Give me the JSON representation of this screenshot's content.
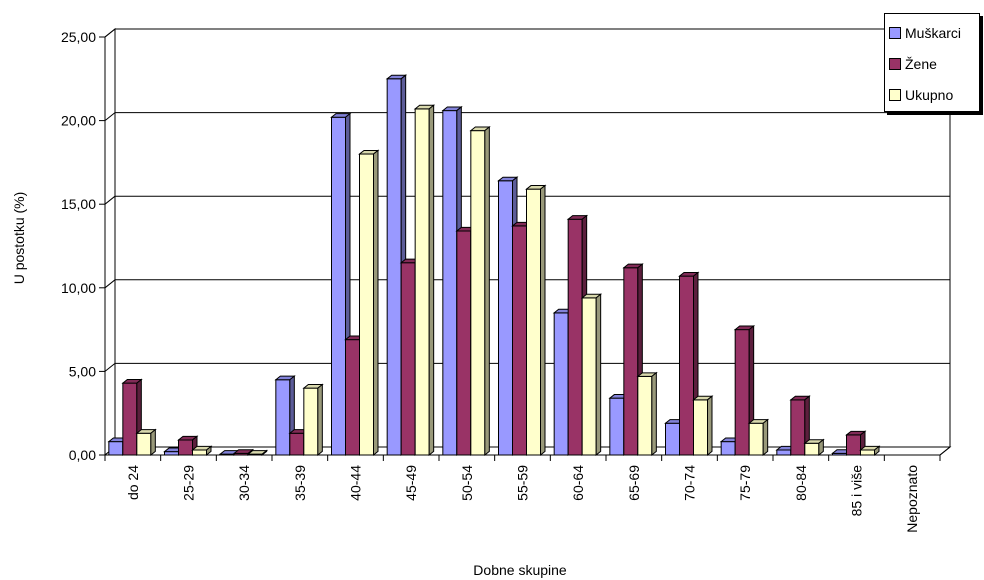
{
  "colors": {
    "muskarci": "#9999ff",
    "zene": "#993366",
    "ukupno": "#ffffcc",
    "grid": "#000000"
  },
  "chart_data": {
    "type": "bar",
    "title": "",
    "xlabel": "Dobne skupine",
    "ylabel": "U postotku (%)",
    "ylim": [
      0,
      25
    ],
    "yticks": [
      "0,00",
      "5,00",
      "10,00",
      "15,00",
      "20,00",
      "25,00"
    ],
    "categories": [
      "do 24",
      "25-29",
      "30-34",
      "35-39",
      "40-44",
      "45-49",
      "50-54",
      "55-59",
      "60-64",
      "65-69",
      "70-74",
      "75-79",
      "80-84",
      "85 i više",
      "Nepoznato"
    ],
    "series": [
      {
        "name": "Muškarci",
        "color": "#9999ff",
        "values": [
          0.8,
          0.2,
          0.05,
          4.5,
          20.2,
          22.5,
          20.6,
          16.4,
          8.5,
          3.4,
          1.9,
          0.8,
          0.3,
          0.1,
          0
        ]
      },
      {
        "name": "Žene",
        "color": "#993366",
        "values": [
          4.3,
          0.9,
          0.1,
          1.3,
          6.9,
          11.5,
          13.4,
          13.7,
          14.1,
          11.2,
          10.7,
          7.5,
          3.3,
          1.2,
          0
        ]
      },
      {
        "name": "Ukupno",
        "color": "#ffffcc",
        "values": [
          1.3,
          0.3,
          0.05,
          4.0,
          18.0,
          20.7,
          19.4,
          15.9,
          9.4,
          4.7,
          3.3,
          1.9,
          0.7,
          0.3,
          0
        ]
      }
    ],
    "grid": true,
    "legend_position": "top-right"
  }
}
